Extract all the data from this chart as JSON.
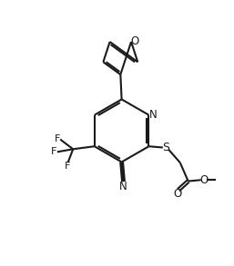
{
  "bg_color": "#ffffff",
  "line_color": "#1a1a1a",
  "line_width": 1.5,
  "figsize": [
    2.57,
    2.93
  ],
  "dpi": 100,
  "xlim": [
    0,
    10
  ],
  "ylim": [
    0,
    11.4
  ]
}
